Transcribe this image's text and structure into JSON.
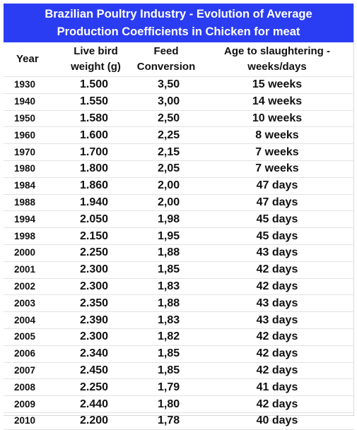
{
  "title": {
    "line1": "Brazilian Poultry Industry - Evolution of Average",
    "line2": "Production Coefficients in Chicken for meat"
  },
  "columns": {
    "year": "Year",
    "weight_line1": "Live bird",
    "weight_line2": "weight (g)",
    "feed_line1": "Feed",
    "feed_line2": "Conversion",
    "age_line1": "Age to slaughtering -",
    "age_line2": "weeks/days"
  },
  "rows": [
    {
      "year": "1930",
      "weight": "1.500",
      "feed": "3,50",
      "age": "15 weeks"
    },
    {
      "year": "1940",
      "weight": "1.550",
      "feed": "3,00",
      "age": "14 weeks"
    },
    {
      "year": "1950",
      "weight": "1.580",
      "feed": "2,50",
      "age": "10 weeks"
    },
    {
      "year": "1960",
      "weight": "1.600",
      "feed": "2,25",
      "age": "8 weeks"
    },
    {
      "year": "1970",
      "weight": "1.700",
      "feed": "2,15",
      "age": "7 weeks"
    },
    {
      "year": "1980",
      "weight": "1.800",
      "feed": "2,05",
      "age": "7 weeks"
    },
    {
      "year": "1984",
      "weight": "1.860",
      "feed": "2,00",
      "age": "47 days"
    },
    {
      "year": "1988",
      "weight": "1.940",
      "feed": "2,00",
      "age": "47 days"
    },
    {
      "year": "1994",
      "weight": "2.050",
      "feed": "1,98",
      "age": "45 days"
    },
    {
      "year": "1998",
      "weight": "2.150",
      "feed": "1,95",
      "age": "45 days"
    },
    {
      "year": "2000",
      "weight": "2.250",
      "feed": "1,88",
      "age": "43 days"
    },
    {
      "year": "2001",
      "weight": "2.300",
      "feed": "1,85",
      "age": "42 days"
    },
    {
      "year": "2002",
      "weight": "2.300",
      "feed": "1,83",
      "age": "42 days"
    },
    {
      "year": "2003",
      "weight": "2.350",
      "feed": "1,88",
      "age": "43 days"
    },
    {
      "year": "2004",
      "weight": "2.390",
      "feed": "1,83",
      "age": "43 days"
    },
    {
      "year": "2005",
      "weight": "2.300",
      "feed": "1,82",
      "age": "42 days"
    },
    {
      "year": "2006",
      "weight": "2.340",
      "feed": "1,85",
      "age": "42 days"
    },
    {
      "year": "2007",
      "weight": "2.450",
      "feed": "1,85",
      "age": "42 days"
    },
    {
      "year": "2008",
      "weight": "2.250",
      "feed": "1,79",
      "age": "41 days"
    },
    {
      "year": "2009",
      "weight": "2.440",
      "feed": "1,80",
      "age": "42 days"
    },
    {
      "year": "2010",
      "weight": "2.200",
      "feed": "1,78",
      "age": "40 days"
    }
  ]
}
